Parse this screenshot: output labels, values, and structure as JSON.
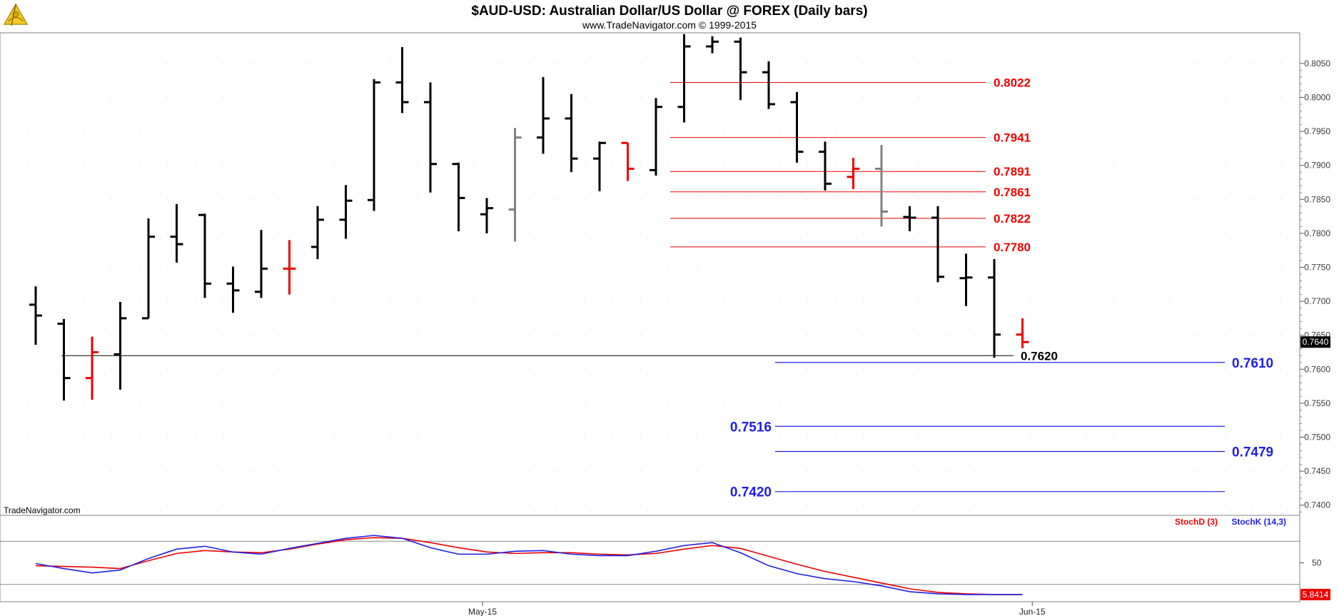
{
  "header": {
    "title": "$AUD-USD:  Australian Dollar/US Dollar @ FOREX  (Daily bars)",
    "subtitle": "www.TradeNavigator.com © 1999-2015",
    "logo_icon": "sextant-logo-icon"
  },
  "watermark": "TradeNavigator.com",
  "colors": {
    "up_bar": "#000000",
    "down_bar": "#ee0000",
    "neutral_bar": "#808080",
    "resistance": "#ee0000",
    "support": "#1e1ee6",
    "stochD": "#ee0000",
    "stochK": "#1e1ee6",
    "last_price_bg": "#000000",
    "stoch_value_bg": "#ee0000"
  },
  "chart_data": [
    {
      "type": "ohlc",
      "ylim": [
        0.7385,
        0.8095
      ],
      "yticks": [
        "0.8050",
        "0.8000",
        "0.7950",
        "0.7900",
        "0.7850",
        "0.7800",
        "0.7750",
        "0.7700",
        "0.7650",
        "0.7600",
        "0.7550",
        "0.7500",
        "0.7450",
        "0.7400"
      ],
      "ytick_values": [
        0.805,
        0.8,
        0.795,
        0.79,
        0.785,
        0.78,
        0.775,
        0.77,
        0.765,
        0.76,
        0.755,
        0.75,
        0.745,
        0.74
      ],
      "xticks": [
        {
          "label": "May-15",
          "bar": 16
        },
        {
          "label": "Jun-15",
          "bar": 35.5
        }
      ],
      "last_price_label": "0.7640",
      "last_price": 0.764,
      "bars": [
        {
          "o": 0.7695,
          "h": 0.7722,
          "l": 0.7636,
          "c": 0.7679,
          "color": "black"
        },
        {
          "o": 0.7667,
          "h": 0.7674,
          "l": 0.7554,
          "c": 0.7587,
          "color": "black"
        },
        {
          "o": 0.7587,
          "h": 0.7648,
          "l": 0.7555,
          "c": 0.7625,
          "color": "red"
        },
        {
          "o": 0.7622,
          "h": 0.7699,
          "l": 0.757,
          "c": 0.7675,
          "color": "black"
        },
        {
          "o": 0.7675,
          "h": 0.7822,
          "l": 0.7675,
          "c": 0.7795,
          "color": "black"
        },
        {
          "o": 0.7795,
          "h": 0.7843,
          "l": 0.7757,
          "c": 0.7784,
          "color": "black"
        },
        {
          "o": 0.7827,
          "h": 0.7829,
          "l": 0.7705,
          "c": 0.7726,
          "color": "black"
        },
        {
          "o": 0.7726,
          "h": 0.7751,
          "l": 0.7683,
          "c": 0.7716,
          "color": "black"
        },
        {
          "o": 0.7714,
          "h": 0.7805,
          "l": 0.7705,
          "c": 0.7748,
          "color": "black"
        },
        {
          "o": 0.7748,
          "h": 0.779,
          "l": 0.771,
          "c": 0.7748,
          "color": "red"
        },
        {
          "o": 0.778,
          "h": 0.784,
          "l": 0.7762,
          "c": 0.782,
          "color": "black"
        },
        {
          "o": 0.782,
          "h": 0.7871,
          "l": 0.7792,
          "c": 0.7848,
          "color": "black"
        },
        {
          "o": 0.7849,
          "h": 0.8027,
          "l": 0.7833,
          "c": 0.8022,
          "color": "black"
        },
        {
          "o": 0.8022,
          "h": 0.8074,
          "l": 0.7977,
          "c": 0.7993,
          "color": "black"
        },
        {
          "o": 0.7993,
          "h": 0.8022,
          "l": 0.786,
          "c": 0.7902,
          "color": "black"
        },
        {
          "o": 0.7902,
          "h": 0.7904,
          "l": 0.7803,
          "c": 0.7852,
          "color": "black"
        },
        {
          "o": 0.7828,
          "h": 0.7852,
          "l": 0.78,
          "c": 0.7837,
          "color": "black"
        },
        {
          "o": 0.7835,
          "h": 0.7955,
          "l": 0.7788,
          "c": 0.7941,
          "color": "gray"
        },
        {
          "o": 0.7941,
          "h": 0.803,
          "l": 0.7917,
          "c": 0.7969,
          "color": "black"
        },
        {
          "o": 0.7969,
          "h": 0.8005,
          "l": 0.789,
          "c": 0.791,
          "color": "black"
        },
        {
          "o": 0.791,
          "h": 0.7935,
          "l": 0.7862,
          "c": 0.7933,
          "color": "black"
        },
        {
          "o": 0.7933,
          "h": 0.7933,
          "l": 0.7877,
          "c": 0.7895,
          "color": "red"
        },
        {
          "o": 0.7893,
          "h": 0.7999,
          "l": 0.7885,
          "c": 0.7986,
          "color": "black"
        },
        {
          "o": 0.7986,
          "h": 0.8093,
          "l": 0.7963,
          "c": 0.8075,
          "color": "black"
        },
        {
          "o": 0.8075,
          "h": 0.809,
          "l": 0.8065,
          "c": 0.8082,
          "color": "black"
        },
        {
          "o": 0.8082,
          "h": 0.8088,
          "l": 0.7996,
          "c": 0.8037,
          "color": "black"
        },
        {
          "o": 0.8037,
          "h": 0.8053,
          "l": 0.7983,
          "c": 0.799,
          "color": "black"
        },
        {
          "o": 0.7993,
          "h": 0.8008,
          "l": 0.7904,
          "c": 0.792,
          "color": "black"
        },
        {
          "o": 0.792,
          "h": 0.7935,
          "l": 0.7863,
          "c": 0.7873,
          "color": "black"
        },
        {
          "o": 0.7883,
          "h": 0.7911,
          "l": 0.7865,
          "c": 0.7895,
          "color": "red"
        },
        {
          "o": 0.7895,
          "h": 0.793,
          "l": 0.781,
          "c": 0.7832,
          "color": "gray"
        },
        {
          "o": 0.7824,
          "h": 0.784,
          "l": 0.7803,
          "c": 0.7823,
          "color": "black"
        },
        {
          "o": 0.7823,
          "h": 0.784,
          "l": 0.7728,
          "c": 0.7736,
          "color": "black"
        },
        {
          "o": 0.7734,
          "h": 0.777,
          "l": 0.7693,
          "c": 0.7735,
          "color": "black"
        },
        {
          "o": 0.7735,
          "h": 0.7762,
          "l": 0.7617,
          "c": 0.7651,
          "color": "black"
        },
        {
          "o": 0.7651,
          "h": 0.7675,
          "l": 0.7631,
          "c": 0.764,
          "color": "red"
        }
      ],
      "resistance_levels": [
        {
          "label": "0.8022",
          "value": 0.8022
        },
        {
          "label": "0.7941",
          "value": 0.7941
        },
        {
          "label": "0.7891",
          "value": 0.7891
        },
        {
          "label": "0.7861",
          "value": 0.7861
        },
        {
          "label": "0.7822",
          "value": 0.7822
        },
        {
          "label": "0.7780",
          "value": 0.778
        }
      ],
      "black_level": {
        "label": "0.7620",
        "value": 0.762
      },
      "support_levels": [
        {
          "label": "0.7610",
          "value": 0.761,
          "label_side": "right"
        },
        {
          "label": "0.7516",
          "value": 0.7516,
          "label_side": "left"
        },
        {
          "label": "0.7479",
          "value": 0.7479,
          "label_side": "right"
        },
        {
          "label": "0.7420",
          "value": 0.742,
          "label_side": "left"
        }
      ]
    },
    {
      "type": "line",
      "ylim": [
        0,
        100
      ],
      "yticks": [
        "50"
      ],
      "upper_band": 80,
      "lower_band": 20,
      "legend": [
        "StochD (3)",
        "StochK (14,3)"
      ],
      "last_value_label": "5.8414",
      "series": [
        {
          "name": "StochD (3)",
          "values": [
            46,
            45,
            44,
            42,
            53,
            63,
            67,
            65,
            64,
            69,
            76,
            82,
            85,
            84,
            78,
            71,
            65,
            63,
            64,
            64,
            62,
            61,
            63,
            69,
            74,
            70,
            59,
            48,
            38,
            30,
            22,
            14,
            9,
            7,
            6,
            6
          ]
        },
        {
          "name": "StochK (14,3)",
          "values": [
            49,
            42,
            36,
            40,
            56,
            69,
            73,
            65,
            62,
            70,
            77,
            84,
            88,
            84,
            71,
            62,
            62,
            66,
            67,
            62,
            60,
            60,
            66,
            74,
            78,
            64,
            46,
            35,
            28,
            24,
            18,
            10,
            7,
            6,
            6,
            6
          ]
        }
      ]
    }
  ]
}
